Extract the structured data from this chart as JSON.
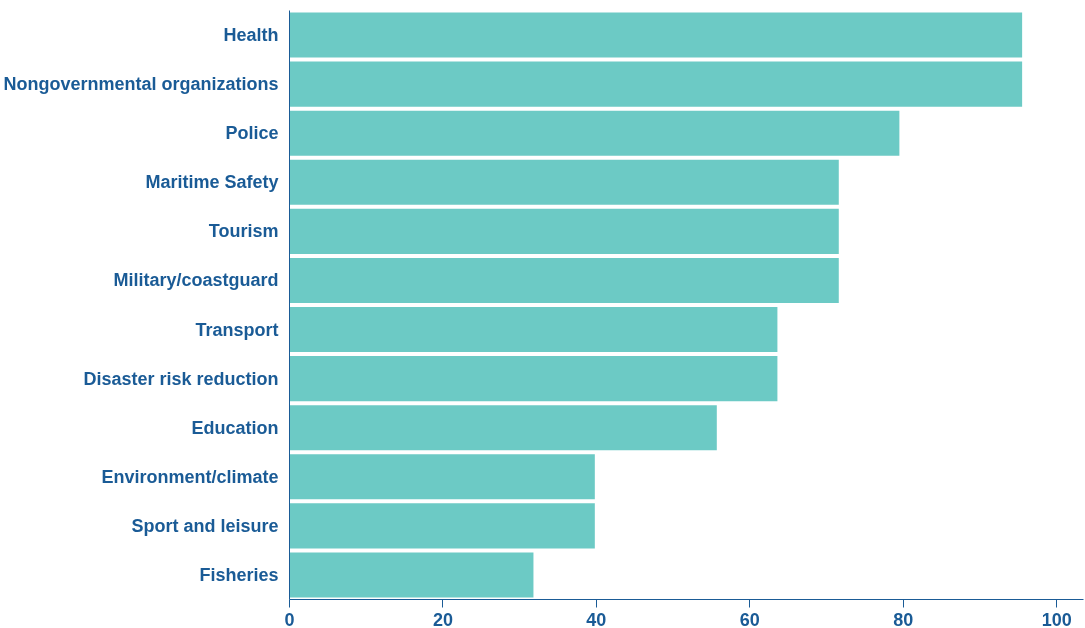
{
  "chart_data": {
    "type": "bar",
    "orientation": "horizontal",
    "categories": [
      "Health",
      "Nongovernmental organizations",
      "Police",
      "Maritime Safety",
      "Tourism",
      "Military/coastguard",
      "Transport",
      "Disaster risk reduction",
      "Education",
      "Environment/climate",
      "Sport and leisure",
      "Fisheries"
    ],
    "values": [
      95.5,
      95.5,
      79.5,
      71.6,
      71.6,
      71.6,
      63.6,
      63.6,
      55.7,
      39.8,
      39.8,
      31.8
    ],
    "color": "#6ccac5",
    "xlim": [
      0,
      103.5
    ],
    "xticks": [
      0,
      20,
      40,
      60,
      80,
      100
    ],
    "grid": false
  }
}
